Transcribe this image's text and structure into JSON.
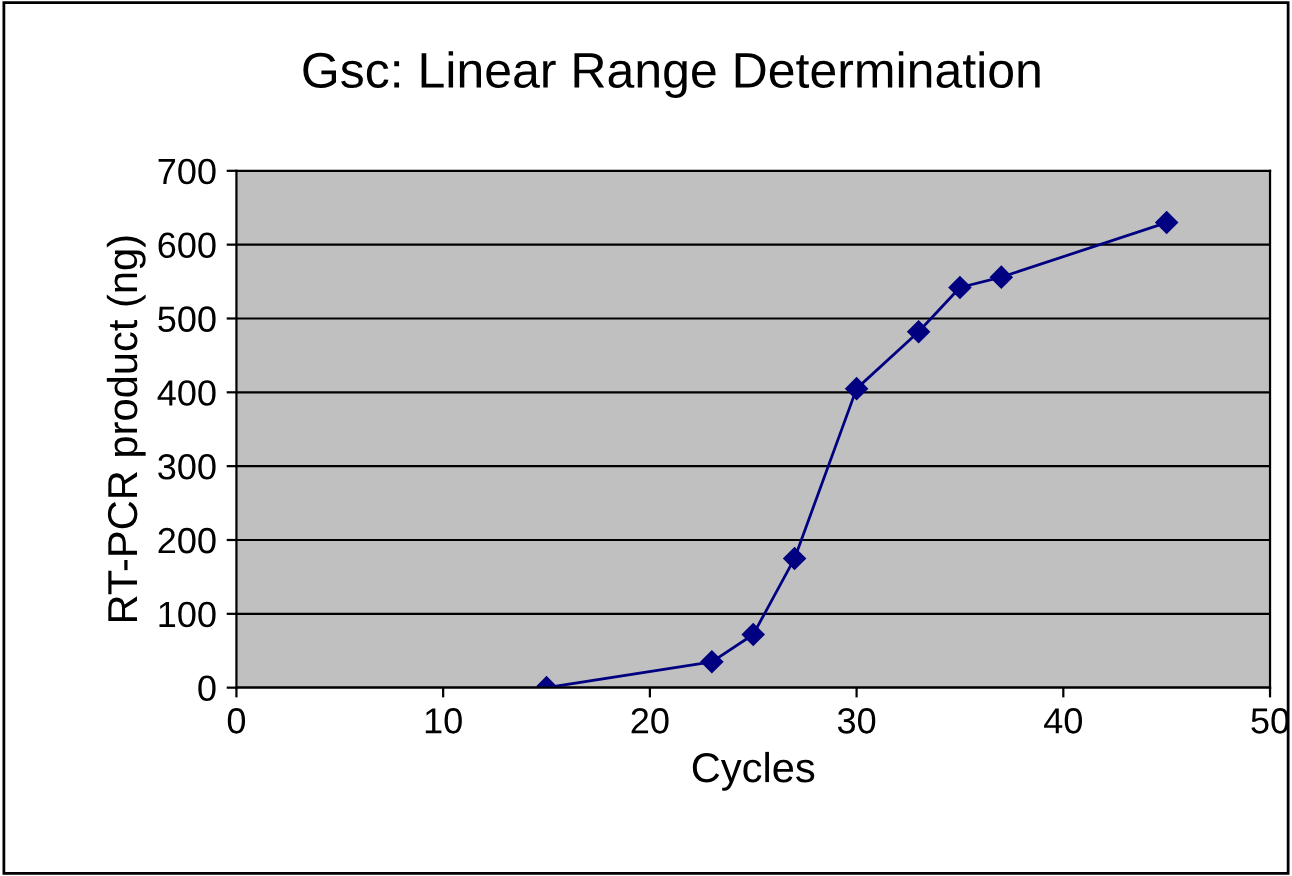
{
  "chart_data": {
    "type": "line",
    "title": "Gsc: Linear Range Determination",
    "xlabel": "Cycles",
    "ylabel": "RT-PCR product (ng)",
    "x": [
      15,
      23,
      25,
      27,
      30,
      33,
      35,
      37,
      45
    ],
    "series": [
      {
        "color": "#000080",
        "values": [
          0,
          35,
          72,
          175,
          405,
          482,
          542,
          556,
          630
        ]
      }
    ],
    "xlim": [
      0,
      50
    ],
    "xticks": [
      0,
      10,
      20,
      30,
      40,
      50
    ],
    "ylim": [
      0,
      700
    ],
    "yticks": [
      0,
      100,
      200,
      300,
      400,
      500,
      600,
      700
    ],
    "grid": "y",
    "marker": "diamond",
    "line_style": "solid",
    "legend": false
  }
}
